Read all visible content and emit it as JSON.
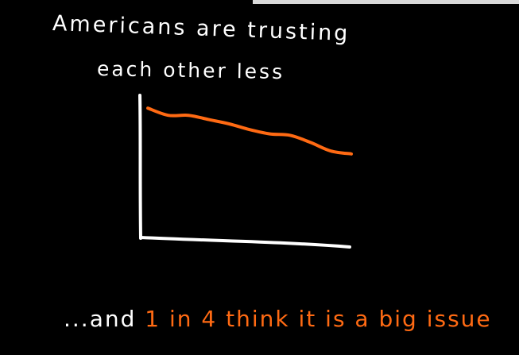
{
  "title": {
    "line1": "Americans are trusting",
    "line2": "each other less"
  },
  "caption": {
    "prefix": "...and ",
    "highlight": "1 in 4 think it is a big issue"
  },
  "colors": {
    "background": "#000000",
    "ink": "#ffffff",
    "accent": "#ff6a13"
  },
  "chart_data": {
    "type": "line",
    "title": "Americans are trusting each other less",
    "xlabel": "",
    "ylabel": "",
    "x": [
      0,
      1,
      2,
      3,
      4,
      5,
      6,
      7,
      8,
      9,
      10
    ],
    "ylim": [
      0,
      100
    ],
    "series": [
      {
        "values": [
          91,
          86,
          86,
          83,
          80,
          76,
          73,
          72,
          67,
          61,
          59
        ]
      }
    ]
  }
}
